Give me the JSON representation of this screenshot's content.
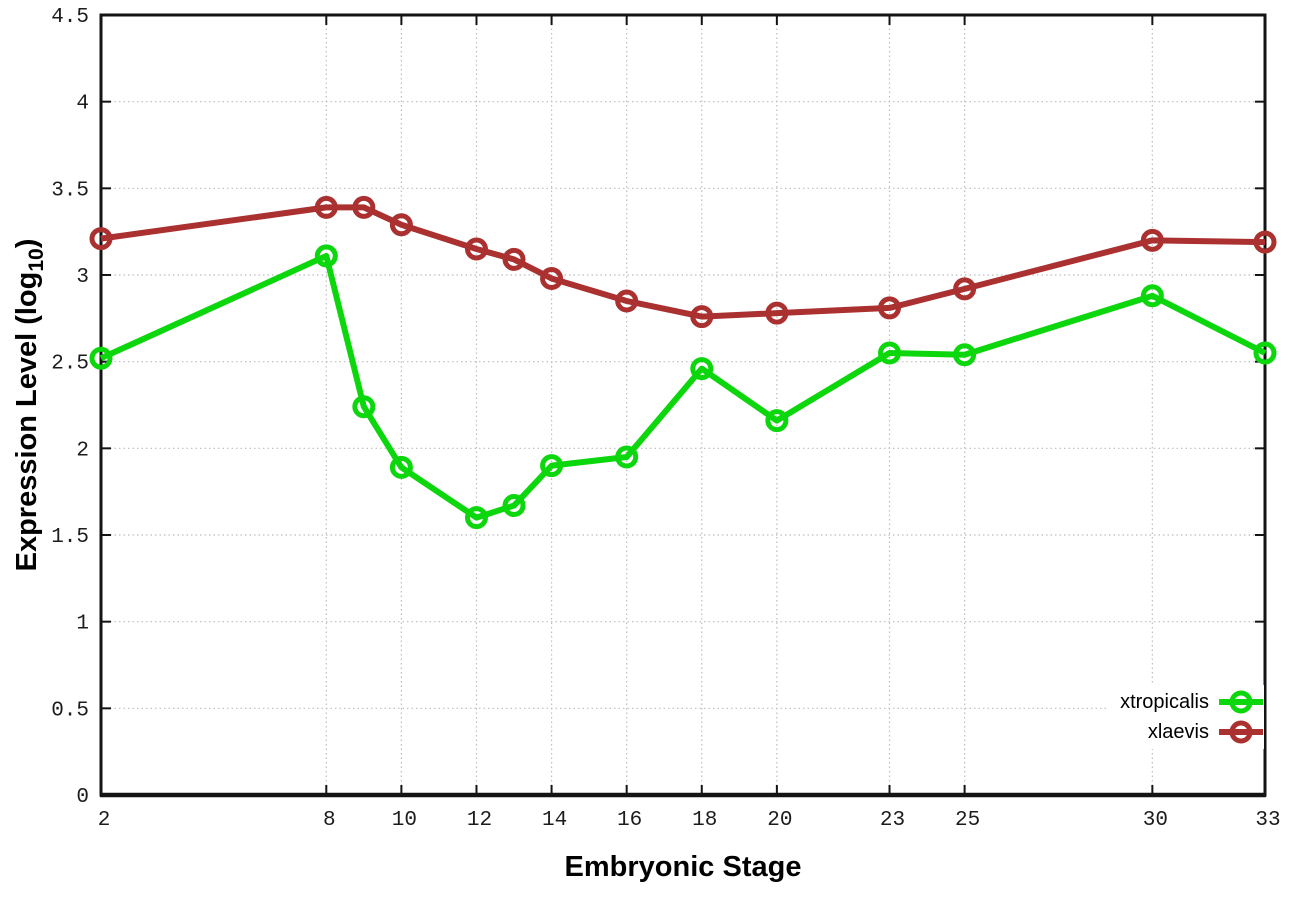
{
  "chart_data": {
    "type": "line",
    "title": "",
    "xlabel": "Embryonic Stage",
    "ylabel": "Expression Level (log10)",
    "ylabel_parts": {
      "prefix": "Expression Level (log",
      "sub": "10",
      "suffix": ")"
    },
    "xlim": [
      2,
      33
    ],
    "ylim": [
      0,
      4.5
    ],
    "x_ticks": [
      2,
      8,
      10,
      12,
      14,
      16,
      18,
      20,
      23,
      25,
      30,
      33
    ],
    "x_tick_labels": [
      "2",
      "8",
      "10",
      "12",
      "14",
      "16",
      "18",
      "20",
      "23",
      "25",
      "30",
      "33"
    ],
    "y_ticks": [
      0,
      0.5,
      1,
      1.5,
      2,
      2.5,
      3,
      3.5,
      4,
      4.5
    ],
    "y_tick_labels": [
      "0",
      "0.5",
      "1",
      "1.5",
      "2",
      "2.5",
      "3",
      "3.5",
      "4",
      "4.5"
    ],
    "grid": true,
    "legend_position": "inside bottom-right",
    "x": [
      2,
      8,
      9,
      10,
      12,
      13,
      14,
      16,
      18,
      20,
      23,
      25,
      30,
      33
    ],
    "series": [
      {
        "name": "xtropicalis",
        "color": "#0cd60c",
        "values": [
          2.52,
          3.11,
          2.24,
          1.89,
          1.6,
          1.67,
          1.9,
          1.95,
          2.46,
          2.16,
          2.55,
          2.54,
          2.88,
          2.55
        ]
      },
      {
        "name": "xlaevis",
        "color": "#ab3030",
        "values": [
          3.21,
          3.39,
          3.39,
          3.29,
          3.15,
          3.09,
          2.98,
          2.85,
          2.76,
          2.78,
          2.81,
          2.92,
          3.2,
          3.19
        ]
      }
    ],
    "colors": {
      "grid": "#bdbdbd",
      "axis": "#141414",
      "background": "#ffffff"
    }
  }
}
